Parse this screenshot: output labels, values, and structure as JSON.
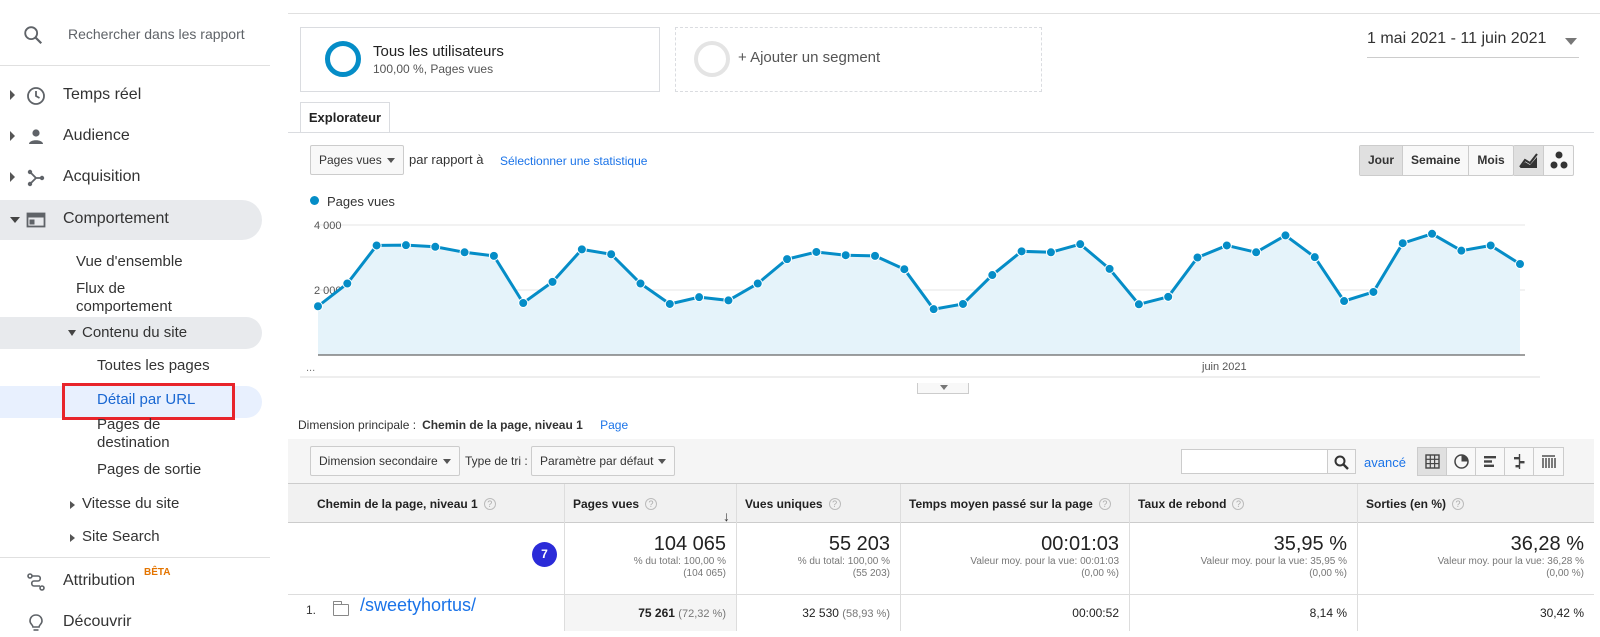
{
  "sidebar": {
    "search_placeholder": "Rechercher dans les rapport",
    "items": [
      {
        "label": "Temps réel",
        "icon": "clock-icon"
      },
      {
        "label": "Audience",
        "icon": "person-icon"
      },
      {
        "label": "Acquisition",
        "icon": "acquisition-icon"
      },
      {
        "label": "Comportement",
        "icon": "behavior-icon"
      }
    ],
    "behavior_sub": {
      "overview": "Vue d'ensemble",
      "flow_line1": "Flux de",
      "flow_line2": "comportement",
      "site_content": "Contenu du site",
      "all_pages": "Toutes les pages",
      "url_detail": "Détail par URL",
      "landing_line1": "Pages de",
      "landing_line2": "destination",
      "exit_pages": "Pages de sortie",
      "site_speed": "Vitesse du site",
      "site_search": "Site Search"
    },
    "attribution": "Attribution",
    "beta": "BÊTA",
    "discover": "Découvrir"
  },
  "segments": {
    "all_users": "Tous les utilisateurs",
    "all_users_sub": "100,00 %, Pages vues",
    "add_segment": "+ Ajouter un segment"
  },
  "date_range": "1 mai 2021 - 11 juin 2021",
  "tab_explorer": "Explorateur",
  "metric_select": "Pages vues",
  "compare_label": "par rapport à",
  "select_stat_link": "Sélectionner une statistique",
  "granularity": {
    "day": "Jour",
    "week": "Semaine",
    "month": "Mois"
  },
  "chart_data": {
    "type": "area",
    "series": [
      {
        "name": "Pages vues",
        "values": [
          1500,
          2200,
          3370,
          3380,
          3330,
          3160,
          3050,
          1600,
          2250,
          3250,
          3100,
          2200,
          1570,
          1780,
          1680,
          2200,
          2950,
          3170,
          3070,
          3050,
          2640,
          1410,
          1570,
          2460,
          3190,
          3160,
          3410,
          2650,
          1560,
          1790,
          3000,
          3370,
          3160,
          3680,
          3010,
          1660,
          1940,
          3440,
          3730,
          3210,
          3370,
          2800
        ]
      }
    ],
    "yticks": [
      "4 000",
      "2 000"
    ],
    "ylim": [
      0,
      4000
    ],
    "xtick_start": "...",
    "xtick_label": "juin 2021",
    "color": "#058dc7",
    "fill": "#e5f3fa"
  },
  "dimension": {
    "label": "Dimension principale :",
    "value": "Chemin de la page, niveau 1",
    "alt": "Page"
  },
  "toolbar": {
    "secondary_dimension": "Dimension secondaire",
    "sort_type_label": "Type de tri :",
    "sort_type_value": "Paramètre par défaut",
    "advanced": "avancé"
  },
  "table": {
    "headers": [
      "Chemin de la page, niveau 1",
      "Pages vues",
      "Vues uniques",
      "Temps moyen passé sur la page",
      "Taux de rebond",
      "Sorties (en %)"
    ],
    "totals": [
      {
        "big": "104 065",
        "sub1": "% du total: 100,00 %",
        "sub2": "(104 065)"
      },
      {
        "big": "55 203",
        "sub1": "% du total: 100,00 %",
        "sub2": "(55 203)"
      },
      {
        "big": "00:01:03",
        "sub1": "Valeur moy. pour la vue: 00:01:03",
        "sub2": "(0,00 %)"
      },
      {
        "big": "35,95 %",
        "sub1": "Valeur moy. pour la vue: 35,95 %",
        "sub2": "(0,00 %)"
      },
      {
        "big": "36,28 %",
        "sub1": "Valeur moy. pour la vue: 36,28 %",
        "sub2": "(0,00 %)"
      }
    ],
    "badge": "7",
    "rows": [
      {
        "num": "1.",
        "path": "/sweetyhortus/",
        "pageviews": "75 261",
        "pageviews_pct": "(72,32 %)",
        "unique": "32 530",
        "unique_pct": "(58,93 %)",
        "avg_time": "00:00:52",
        "bounce": "8,14 %",
        "exit": "30,42 %"
      }
    ]
  }
}
